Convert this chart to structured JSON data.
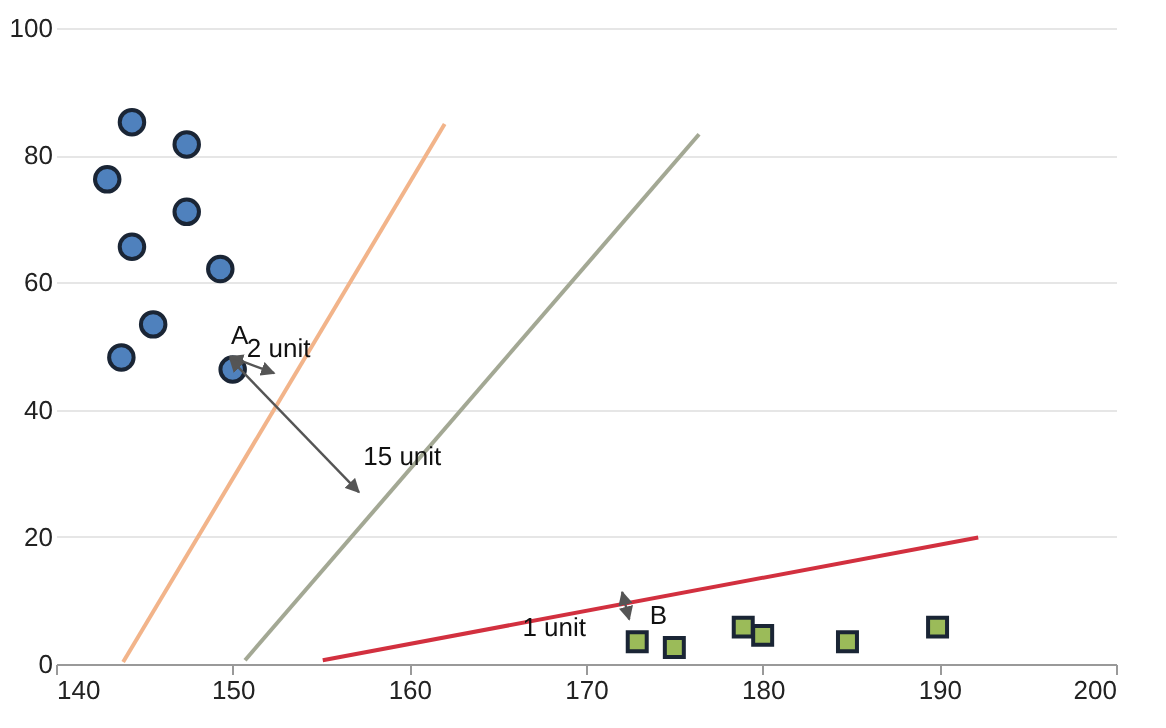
{
  "chart_data": {
    "type": "scatter",
    "xlim": [
      140,
      200
    ],
    "xticks": [
      140,
      150,
      160,
      170,
      180,
      190,
      200
    ],
    "ylim": [
      0,
      100
    ],
    "yticks": [
      0,
      20,
      40,
      60,
      80,
      100
    ],
    "grid": "y",
    "series": [
      {
        "marker": "circle",
        "color": "#4f81bd",
        "x": [
          142.9,
          144.3,
          147.4,
          144.3,
          147.4,
          149.3,
          145.5,
          143.7,
          150.0
        ],
        "values": [
          76.2,
          85.2,
          81.7,
          65.6,
          71.1,
          62.1,
          53.4,
          48.2,
          46.3
        ]
      },
      {
        "marker": "square",
        "color": "#9bbb59",
        "x": [
          172.9,
          175.0,
          178.9,
          180.0,
          184.8,
          189.9
        ],
        "values": [
          3.5,
          2.6,
          5.8,
          4.5,
          3.5,
          5.8
        ]
      },
      {
        "type": "line",
        "color": "#f2b48a",
        "x": [
          143.8,
          162.0
        ],
        "values": [
          0.3,
          84.9
        ]
      },
      {
        "type": "line",
        "color": "#a3a894",
        "x": [
          150.7,
          176.4
        ],
        "values": [
          0.6,
          83.3
        ]
      },
      {
        "type": "line",
        "color": "#d2303f",
        "x": [
          155.1,
          192.2
        ],
        "values": [
          0.6,
          19.9
        ]
      }
    ],
    "annotations": [
      "A",
      "2 unit",
      "15 unit",
      "1 unit",
      "B"
    ]
  }
}
